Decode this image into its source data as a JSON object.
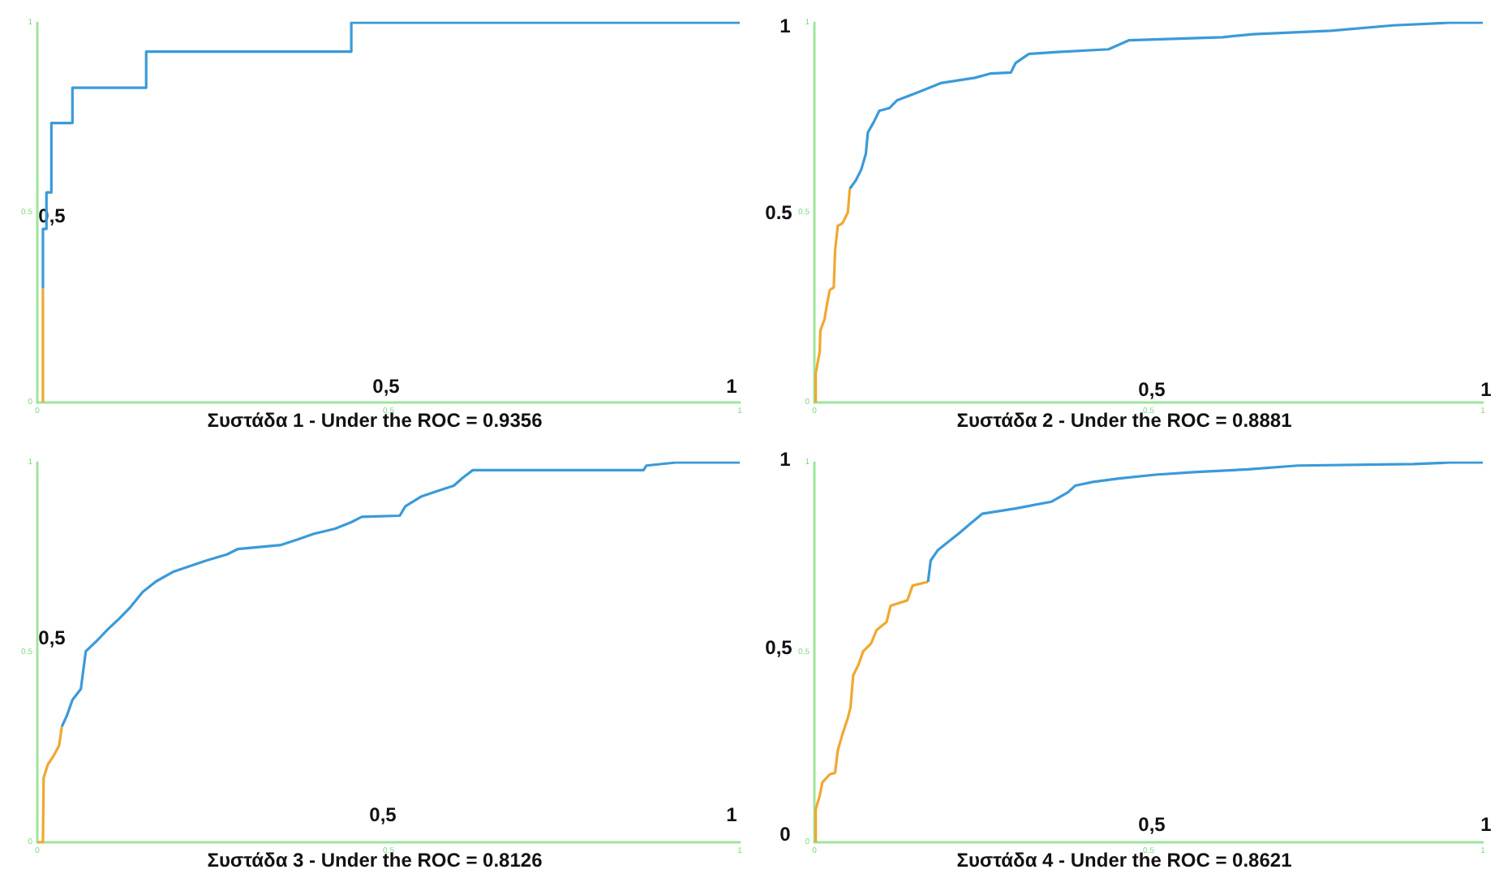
{
  "chart_data": [
    {
      "type": "line",
      "title": "Συστάδα 1 - Under the ROC = 0.9356",
      "xlim": [
        0,
        1
      ],
      "ylim": [
        0,
        1
      ],
      "xticks": [
        0,
        0.5,
        1
      ],
      "yticks": [
        0,
        0.5,
        1
      ],
      "annotations": [
        "0,5",
        "0,5",
        "1"
      ],
      "series": [
        {
          "color": "#f0a830",
          "x": [
            0.008,
            0.008
          ],
          "values": [
            0,
            0.3
          ]
        },
        {
          "color": "#3a9ad9",
          "x": [
            0.008,
            0.008,
            0.013,
            0.013,
            0.02,
            0.02,
            0.05,
            0.05,
            0.155,
            0.155,
            0.447,
            0.447,
            1
          ],
          "values": [
            0.3,
            0.457,
            0.457,
            0.553,
            0.553,
            0.736,
            0.736,
            0.829,
            0.829,
            0.924,
            0.924,
            1,
            1
          ]
        }
      ]
    },
    {
      "type": "line",
      "title": "Συστάδα 2 - Under the ROC = 0.8881",
      "xlim": [
        0,
        1
      ],
      "ylim": [
        0,
        1
      ],
      "xticks": [
        0,
        0.5,
        1
      ],
      "yticks": [
        0,
        0.5,
        1
      ],
      "annotations": [
        "1",
        "0.5",
        "0,5",
        "1"
      ],
      "series": [
        {
          "color": "#f0a830",
          "x": [
            0.002,
            0.002,
            0.008,
            0.009,
            0.015,
            0.019,
            0.023,
            0.029,
            0.031,
            0.035,
            0.042,
            0.05,
            0.053
          ],
          "values": [
            0,
            0.077,
            0.134,
            0.19,
            0.218,
            0.26,
            0.296,
            0.303,
            0.401,
            0.465,
            0.472,
            0.5,
            0.563
          ]
        },
        {
          "color": "#3a9ad9",
          "x": [
            0.053,
            0.062,
            0.07,
            0.077,
            0.08,
            0.089,
            0.097,
            0.112,
            0.124,
            0.155,
            0.189,
            0.24,
            0.263,
            0.294,
            0.301,
            0.321,
            0.363,
            0.44,
            0.471,
            0.611,
            0.657,
            0.773,
            0.866,
            0.951,
            1
          ],
          "values": [
            0.563,
            0.585,
            0.613,
            0.655,
            0.711,
            0.739,
            0.768,
            0.775,
            0.796,
            0.817,
            0.841,
            0.855,
            0.866,
            0.869,
            0.894,
            0.918,
            0.923,
            0.93,
            0.954,
            0.962,
            0.97,
            0.979,
            0.993,
            1,
            1
          ]
        }
      ]
    },
    {
      "type": "line",
      "title": "Συστάδα 3 - Under the ROC = 0.8126",
      "xlim": [
        0,
        1
      ],
      "ylim": [
        0,
        1
      ],
      "xticks": [
        0,
        0.5,
        1
      ],
      "yticks": [
        0,
        0.5,
        1
      ],
      "annotations": [
        "0,5",
        "0,5",
        "1"
      ],
      "series": [
        {
          "color": "#f0a830",
          "x": [
            0,
            0.008,
            0.009,
            0.015,
            0.023,
            0.031,
            0.035
          ],
          "values": [
            0,
            0,
            0.17,
            0.205,
            0.227,
            0.255,
            0.305
          ]
        },
        {
          "color": "#3a9ad9",
          "x": [
            0.035,
            0.042,
            0.05,
            0.062,
            0.069,
            0.085,
            0.1,
            0.116,
            0.131,
            0.15,
            0.169,
            0.193,
            0.239,
            0.27,
            0.285,
            0.347,
            0.37,
            0.393,
            0.424,
            0.447,
            0.462,
            0.516,
            0.524,
            0.547,
            0.57,
            0.593,
            0.605,
            0.62,
            0.863,
            0.867,
            0.909,
            1
          ],
          "values": [
            0.305,
            0.333,
            0.375,
            0.404,
            0.503,
            0.531,
            0.56,
            0.588,
            0.616,
            0.659,
            0.687,
            0.712,
            0.741,
            0.758,
            0.772,
            0.783,
            0.797,
            0.812,
            0.826,
            0.843,
            0.857,
            0.86,
            0.885,
            0.911,
            0.925,
            0.939,
            0.959,
            0.98,
            0.98,
            0.992,
            1,
            1
          ]
        }
      ]
    },
    {
      "type": "line",
      "title": "Συστάδα 4 - Under the ROC = 0.8621",
      "xlim": [
        0,
        1
      ],
      "ylim": [
        0,
        1
      ],
      "xticks": [
        0,
        0.5,
        1
      ],
      "yticks": [
        0,
        0.5,
        1
      ],
      "annotations": [
        "1",
        "0,5",
        "0",
        "0,5",
        "1"
      ],
      "series": [
        {
          "color": "#f0a830",
          "x": [
            0.002,
            0.002,
            0.008,
            0.012,
            0.023,
            0.031,
            0.035,
            0.042,
            0.05,
            0.054,
            0.058,
            0.066,
            0.073,
            0.085,
            0.093,
            0.108,
            0.114,
            0.139,
            0.147,
            0.17
          ],
          "values": [
            0,
            0.087,
            0.123,
            0.158,
            0.179,
            0.183,
            0.242,
            0.285,
            0.327,
            0.355,
            0.439,
            0.468,
            0.503,
            0.524,
            0.559,
            0.58,
            0.623,
            0.637,
            0.676,
            0.686
          ]
        },
        {
          "color": "#3a9ad9",
          "x": [
            0.17,
            0.174,
            0.185,
            0.201,
            0.216,
            0.232,
            0.251,
            0.301,
            0.355,
            0.379,
            0.39,
            0.417,
            0.456,
            0.51,
            0.572,
            0.649,
            0.723,
            0.896,
            0.951,
            1
          ],
          "values": [
            0.686,
            0.742,
            0.77,
            0.792,
            0.813,
            0.837,
            0.865,
            0.879,
            0.897,
            0.921,
            0.939,
            0.949,
            0.958,
            0.968,
            0.975,
            0.982,
            0.992,
            0.996,
            1,
            1
          ]
        }
      ]
    }
  ]
}
